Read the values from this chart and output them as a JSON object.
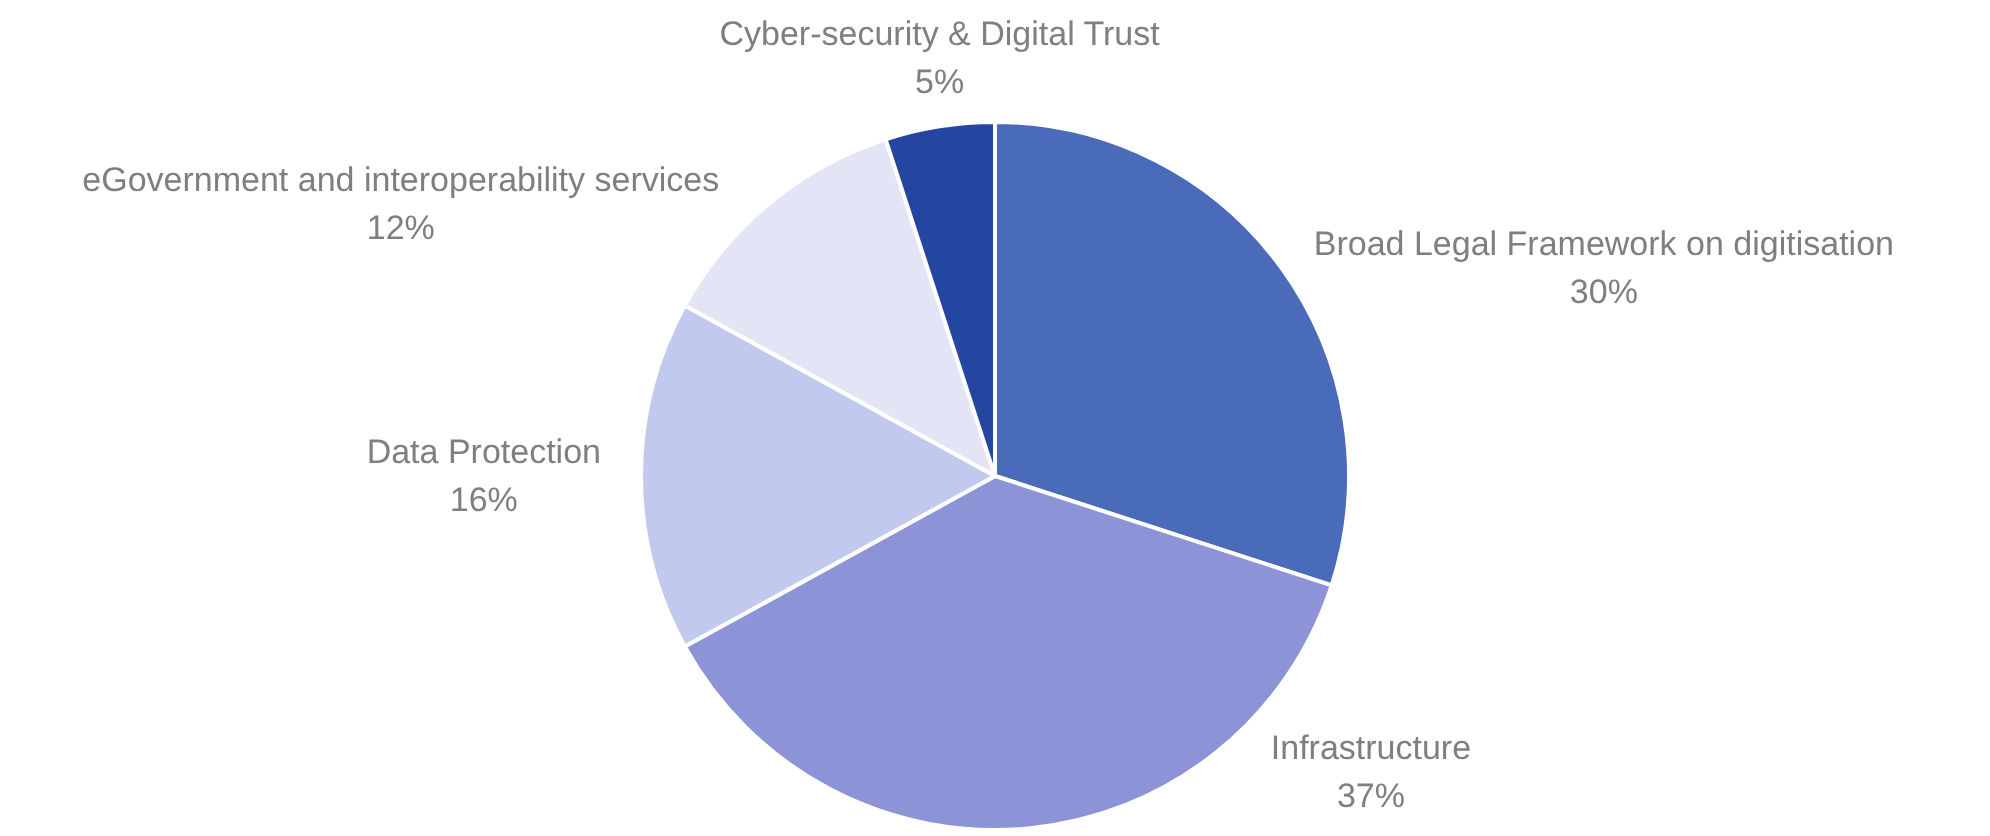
{
  "chart_data": {
    "type": "pie",
    "categories": [
      "Broad Legal Framework on digitisation",
      "Infrastructure",
      "Data Protection",
      "eGovernment and interoperability services",
      "Cyber-security & Digital Trust"
    ],
    "values": [
      30,
      37,
      16,
      12,
      5
    ],
    "value_labels": [
      "30%",
      "37%",
      "16%",
      "12%",
      "5%"
    ],
    "colors": [
      "#4a6bb9",
      "#8c93d6",
      "#c2c9ee",
      "#e3e5f7",
      "#2445a0"
    ],
    "legend": false
  }
}
